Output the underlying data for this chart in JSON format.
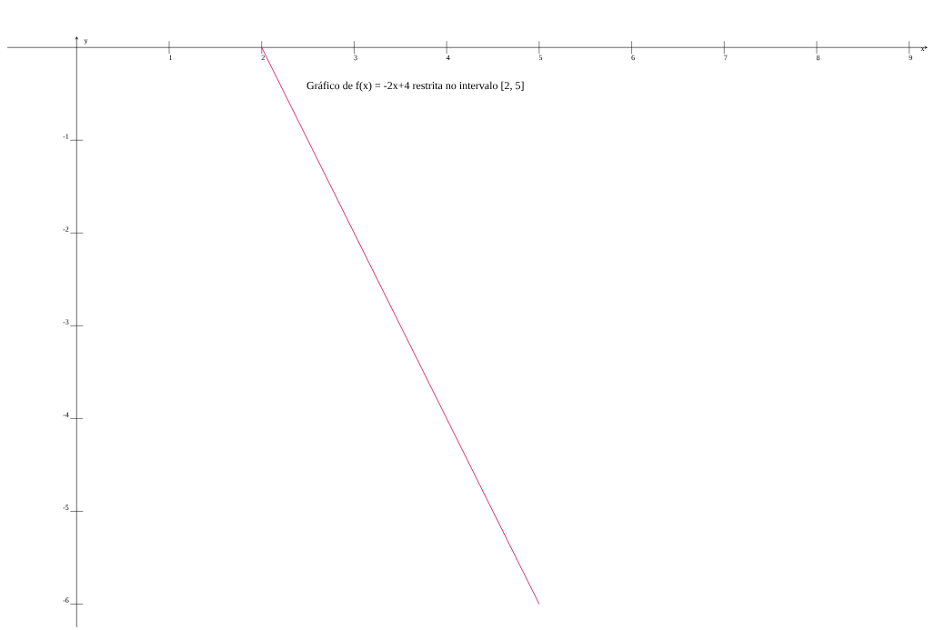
{
  "chart_data": {
    "type": "line",
    "xlabel": "x",
    "ylabel": "y",
    "annotations": [
      "Gráfico de f(x) = -2x+4 restrita no intervalo [2, 5]"
    ],
    "x": [
      2,
      5
    ],
    "series": [
      {
        "color": "#cc0044",
        "values": [
          0,
          -6
        ]
      }
    ],
    "xlim": [
      -0.75,
      9.2
    ],
    "ylim": [
      -6.25,
      0.12
    ],
    "xticks": [
      1,
      2,
      3,
      4,
      5,
      6,
      7,
      8,
      9
    ],
    "yticks": [
      -1,
      -2,
      -3,
      -4,
      -5,
      -6
    ],
    "grid": false,
    "marker": "none",
    "line_style": "solid"
  }
}
